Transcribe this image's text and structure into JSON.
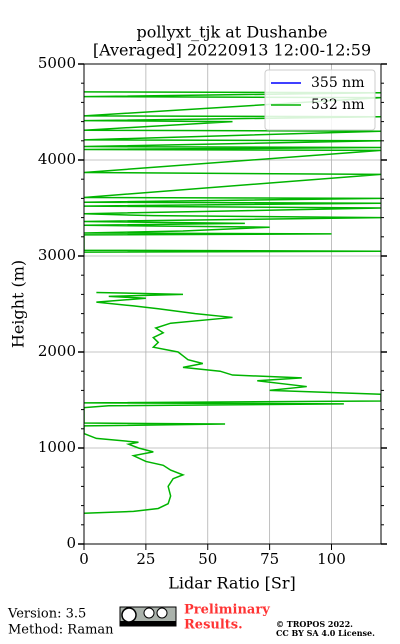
{
  "chart_data": {
    "type": "line",
    "title": [
      "pollyxt_tjk at Dushanbe",
      "[Averaged] 20220913 12:00-12:59"
    ],
    "x_label": "Lidar Ratio [Sr]",
    "y_label": "Height (m)",
    "xlim": [
      0,
      120
    ],
    "xticks": [
      0,
      25,
      50,
      75,
      100
    ],
    "ylim": [
      0,
      5000
    ],
    "yticks": [
      0,
      1000,
      2000,
      3000,
      4000,
      5000
    ],
    "yminor": [
      200,
      400,
      600,
      800,
      1200,
      1400,
      1600,
      1800,
      2200,
      2400,
      2600,
      2800,
      3200,
      3400,
      3600,
      3800,
      4200,
      4400,
      4600,
      4800
    ],
    "grid": true,
    "legend": "upper right",
    "heights": [
      320,
      340,
      370,
      420,
      500,
      600,
      680,
      720,
      770,
      820,
      860,
      920,
      960,
      1000,
      1040,
      1060,
      1100,
      1150,
      1230,
      1250,
      1260,
      1420,
      1440,
      1460,
      1470,
      1490,
      1560,
      1600,
      1640,
      1700,
      1730,
      1760,
      1800,
      1840,
      1880,
      1920,
      1960,
      2000,
      2050,
      2100,
      2150,
      2200,
      2250,
      2300,
      2360,
      2400,
      2450,
      2480,
      2520,
      2560,
      2580,
      2600,
      2620,
      2800,
      3040,
      3050,
      3060,
      3220,
      3230,
      3240,
      3260,
      3300,
      3320,
      3340,
      3360,
      3400,
      3420,
      3440,
      3500,
      3520,
      3550,
      3560,
      3600,
      3610,
      3850,
      3870,
      4100,
      4110,
      4130,
      4140,
      4200,
      4210,
      4300,
      4310,
      4400,
      4410,
      4450,
      4460,
      4650,
      4660,
      4700,
      4710
    ],
    "series": [
      {
        "name": "355 nm",
        "color": "#0000ff"
      },
      {
        "name": "532 nm",
        "color": "#00b400",
        "values": [
          0,
          20,
          30,
          34,
          35,
          34,
          36,
          40,
          35,
          32,
          25,
          20,
          28,
          22,
          18,
          22,
          5,
          0,
          0,
          57,
          0,
          0,
          10,
          105,
          0,
          120,
          120,
          75,
          90,
          70,
          88,
          60,
          55,
          40,
          48,
          42,
          40,
          38,
          28,
          30,
          28,
          32,
          29,
          35,
          60,
          45,
          30,
          20,
          5,
          25,
          10,
          40,
          5,
          null,
          0,
          120,
          0,
          0,
          100,
          0,
          40,
          75,
          0,
          65,
          0,
          120,
          28,
          0,
          120,
          0,
          120,
          0,
          120,
          0,
          120,
          0,
          120,
          0,
          120,
          0,
          120,
          0,
          120,
          0,
          60,
          0,
          120,
          0,
          120,
          0,
          120,
          0
        ]
      }
    ]
  },
  "footer": {
    "version": "Version: 3.5",
    "method": "Method: Raman",
    "status": [
      "Preliminary",
      "Results."
    ],
    "copyright": [
      "© TROPOS 2022.",
      "CC BY SA 4.0 License."
    ]
  }
}
